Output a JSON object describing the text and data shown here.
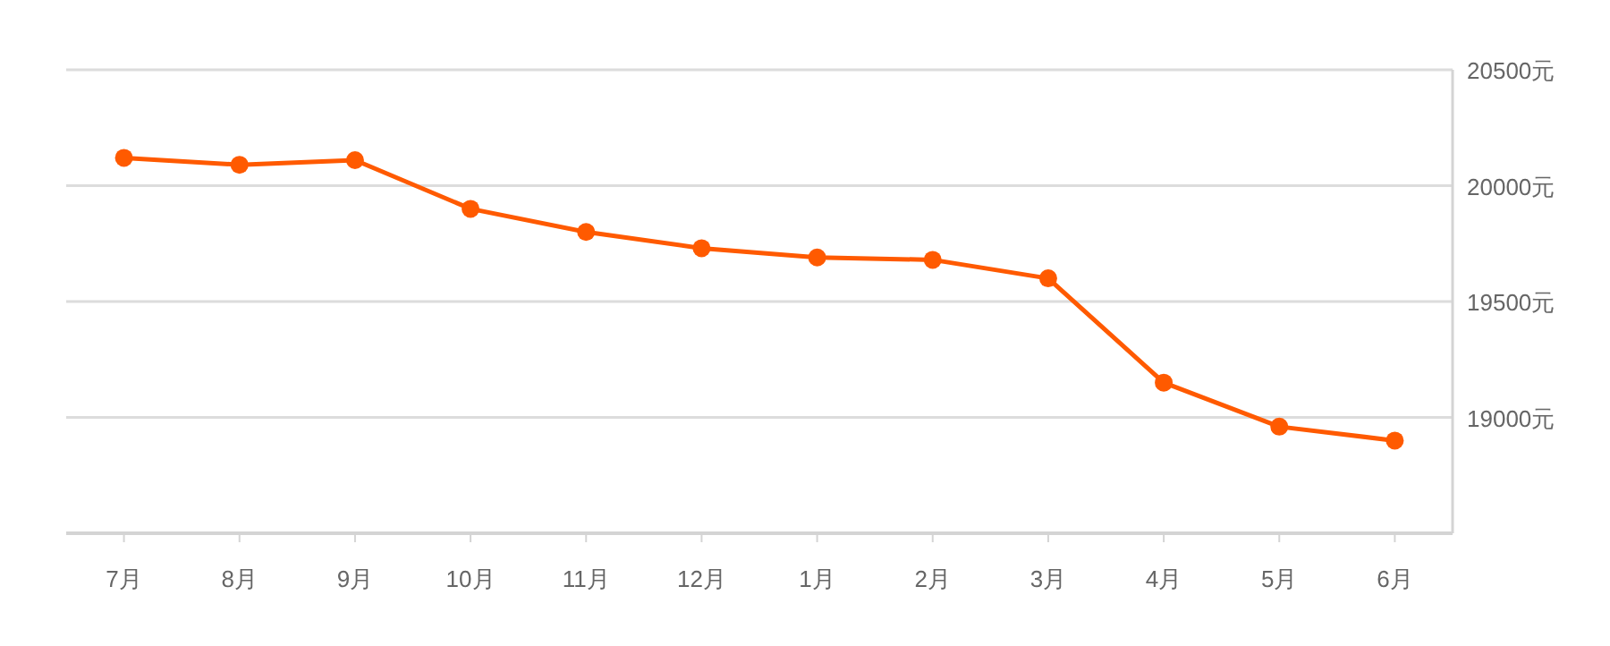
{
  "chart_data": {
    "type": "line",
    "categories": [
      "7月",
      "8月",
      "9月",
      "10月",
      "11月",
      "12月",
      "1月",
      "2月",
      "3月",
      "4月",
      "5月",
      "6月"
    ],
    "series": [
      {
        "color": "#ff5a00",
        "values": [
          20120,
          20090,
          20110,
          19900,
          19800,
          19730,
          19690,
          19680,
          19600,
          19150,
          18960,
          18900
        ]
      }
    ],
    "ylim": [
      18500,
      20500
    ],
    "yticks": [
      {
        "value": 18500,
        "label": null
      },
      {
        "value": 19000,
        "label": "19000元"
      },
      {
        "value": 19500,
        "label": "19500元"
      },
      {
        "value": 20000,
        "label": "20000元"
      },
      {
        "value": 20500,
        "label": "20500元"
      }
    ],
    "grid": "y",
    "marker": "circle",
    "line_style": "solid"
  }
}
